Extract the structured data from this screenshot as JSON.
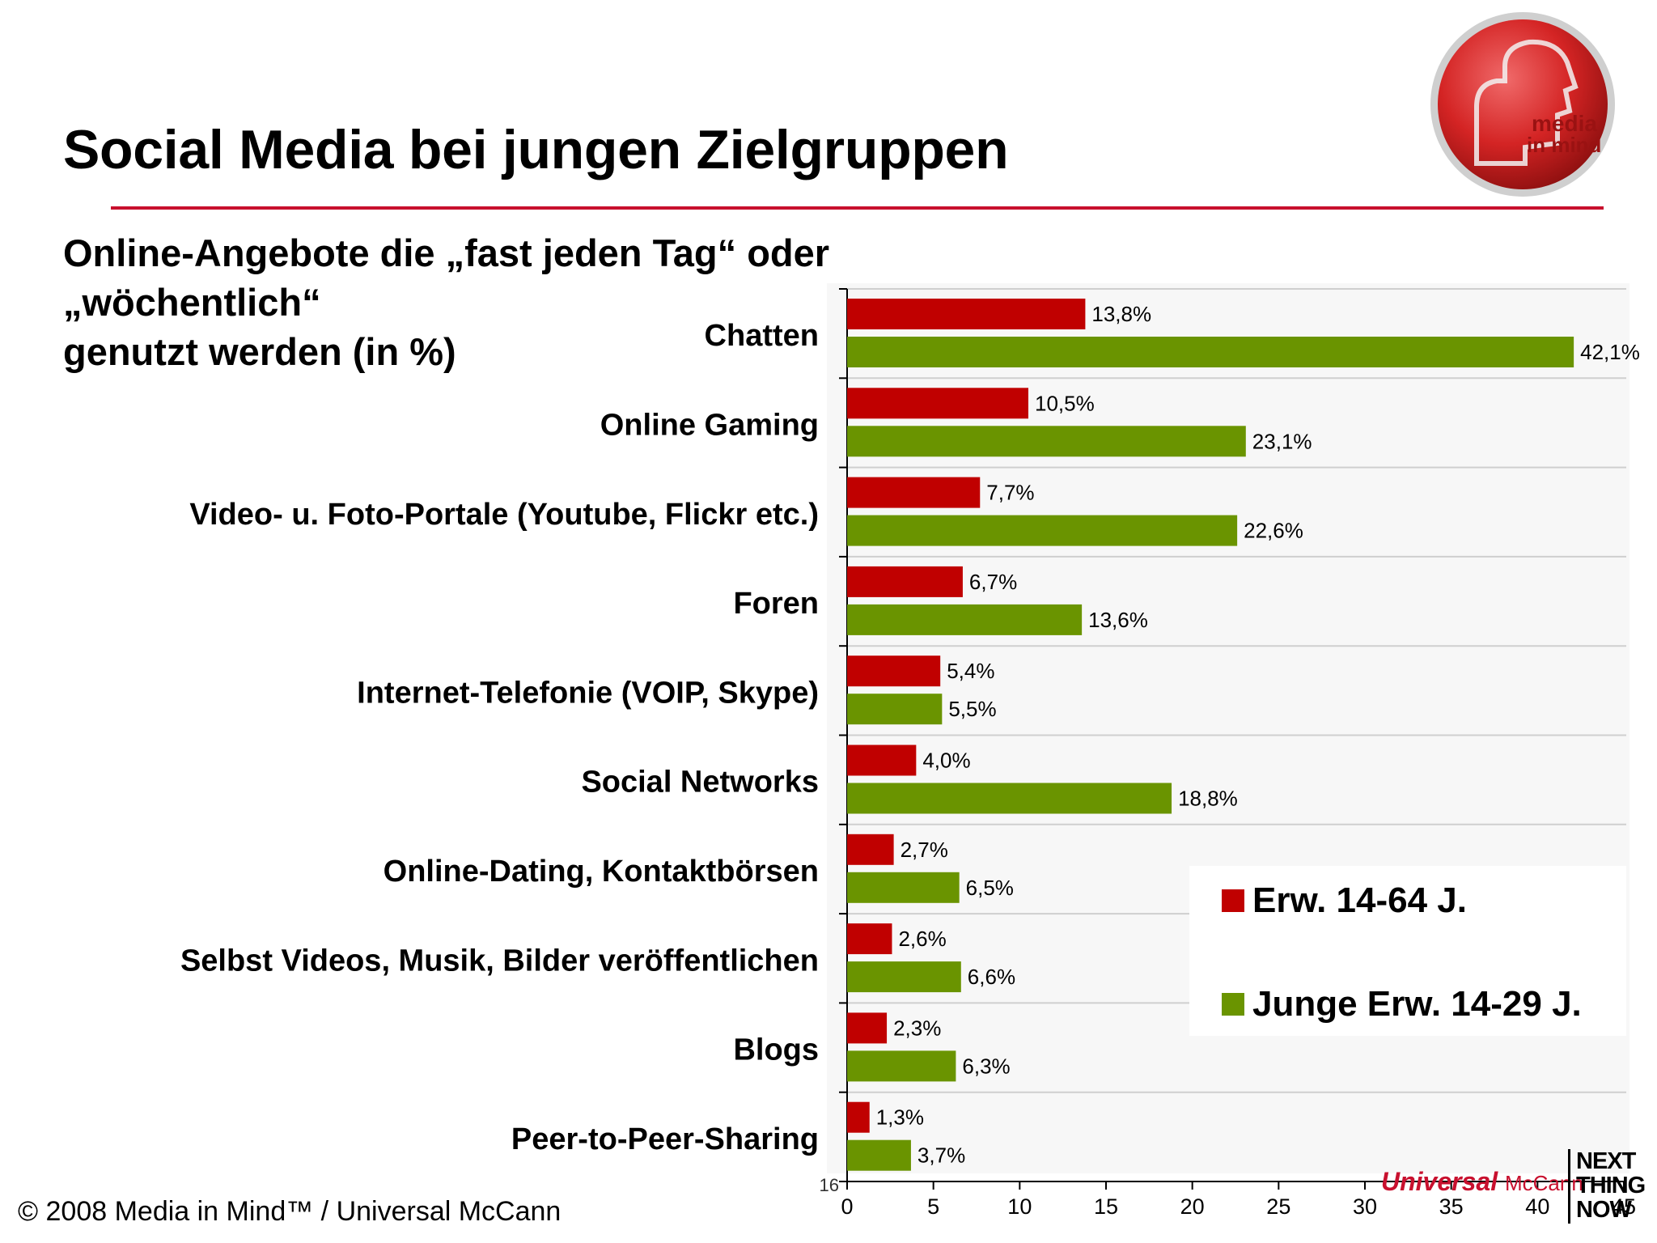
{
  "slide": {
    "title": "Social Media bei jungen Zielgruppen",
    "subtitle_lines": [
      "Online-Angebote die „fast jeden Tag“ oder",
      "„wöchentlich“",
      "genutzt werden (in %)"
    ],
    "footer": "© 2008 Media in Mind™ / Universal McCann",
    "logo_text": [
      "media",
      "in mind"
    ],
    "brand": {
      "universal": "Universal",
      "mccann": "McCann"
    },
    "tagline": [
      "NEXT",
      "THING",
      "NOW"
    ],
    "page_number": "16",
    "colors": {
      "accent": "#c8102e",
      "series1": "#c00000",
      "series2": "#6a9400"
    }
  },
  "chart_data": {
    "type": "bar",
    "orientation": "horizontal",
    "categories": [
      "Chatten",
      "Online Gaming",
      "Video- u. Foto-Portale (Youtube, Flickr etc.)",
      "Foren",
      "Internet-Telefonie (VOIP, Skype)",
      "Social Networks",
      "Online-Dating, Kontaktbörsen",
      "Selbst Videos, Musik, Bilder veröffentlichen",
      "Blogs",
      "Peer-to-Peer-Sharing"
    ],
    "series": [
      {
        "name": "Erw. 14-64 J.",
        "color": "#c00000",
        "values": [
          13.8,
          10.5,
          7.7,
          6.7,
          5.4,
          4.0,
          2.7,
          2.6,
          2.3,
          1.3
        ],
        "labels": [
          "13,8%",
          "10,5%",
          "7,7%",
          "6,7%",
          "5,4%",
          "4,0%",
          "2,7%",
          "2,6%",
          "2,3%",
          "1,3%"
        ]
      },
      {
        "name": "Junge Erw. 14-29 J.",
        "color": "#6a9400",
        "values": [
          42.1,
          23.1,
          22.6,
          13.6,
          5.5,
          18.8,
          6.5,
          6.6,
          6.3,
          3.7
        ],
        "labels": [
          "42,1%",
          "23,1%",
          "22,6%",
          "13,6%",
          "5,5%",
          "18,8%",
          "6,5%",
          "6,6%",
          "6,3%",
          "3,7%"
        ]
      }
    ],
    "xlim": [
      0,
      45
    ],
    "xticks": [
      "0",
      "5",
      "10",
      "15",
      "20",
      "25",
      "30",
      "35",
      "40",
      "45"
    ],
    "grid": true,
    "legend_position": "lower-right"
  }
}
